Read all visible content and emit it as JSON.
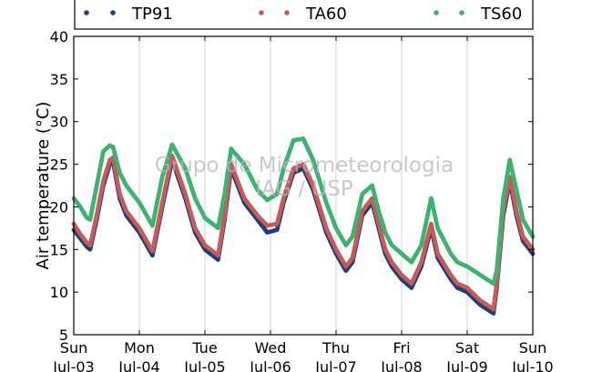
{
  "chart_data": {
    "type": "scatter",
    "ylabel": "Air temperature (°C)",
    "xlabel": "",
    "ylim": [
      5,
      40
    ],
    "xlim": [
      0,
      7
    ],
    "yticks": [
      5,
      10,
      15,
      20,
      25,
      30,
      35,
      40
    ],
    "x_unit": "days since Sun Jul-03 00:00",
    "xticks": [
      {
        "day": "Sun",
        "date": "Jul-03"
      },
      {
        "day": "Mon",
        "date": "Jul-04"
      },
      {
        "day": "Tue",
        "date": "Jul-05"
      },
      {
        "day": "Wed",
        "date": "Jul-06"
      },
      {
        "day": "Thu",
        "date": "Jul-07"
      },
      {
        "day": "Fri",
        "date": "Jul-08"
      },
      {
        "day": "Sat",
        "date": "Jul-09"
      },
      {
        "day": "Sun",
        "date": "Jul-10"
      }
    ],
    "grid": "vertical",
    "legend_position": "top",
    "watermark": [
      "Grupo de Micrometeorologia",
      "IAG / USP"
    ],
    "series": [
      {
        "name": "TP91",
        "color": "#1f3f7a",
        "x": [
          0.0,
          0.1,
          0.2,
          0.25,
          0.35,
          0.45,
          0.55,
          0.6,
          0.7,
          0.8,
          1.0,
          1.2,
          1.35,
          1.5,
          1.7,
          1.85,
          2.0,
          2.2,
          2.3,
          2.4,
          2.6,
          2.8,
          2.95,
          3.1,
          3.2,
          3.35,
          3.5,
          3.65,
          3.85,
          4.0,
          4.15,
          4.25,
          4.4,
          4.55,
          4.65,
          4.75,
          4.85,
          5.0,
          5.15,
          5.3,
          5.45,
          5.55,
          5.75,
          5.85,
          6.0,
          6.2,
          6.4,
          6.45,
          6.55,
          6.65,
          6.75,
          6.85,
          7.0
        ],
        "y": [
          17.3,
          16.3,
          15.3,
          15.0,
          18.5,
          22.5,
          25.0,
          25.3,
          21.0,
          19.0,
          17.0,
          14.3,
          20.0,
          25.5,
          21.0,
          17.0,
          15.0,
          13.8,
          18.5,
          24.5,
          20.5,
          18.5,
          17.0,
          17.3,
          20.5,
          24.0,
          24.5,
          22.0,
          17.0,
          14.5,
          12.5,
          13.5,
          19.0,
          20.5,
          17.5,
          14.5,
          13.0,
          11.5,
          10.5,
          13.0,
          17.5,
          14.0,
          11.5,
          10.5,
          10.0,
          8.5,
          7.5,
          10.5,
          19.0,
          23.0,
          19.0,
          16.0,
          14.5
        ]
      },
      {
        "name": "TA60",
        "color": "#c85a5a",
        "x": [
          0.0,
          0.1,
          0.2,
          0.25,
          0.35,
          0.45,
          0.55,
          0.6,
          0.7,
          0.8,
          1.0,
          1.2,
          1.35,
          1.5,
          1.7,
          1.85,
          2.0,
          2.2,
          2.3,
          2.4,
          2.6,
          2.8,
          2.95,
          3.1,
          3.2,
          3.35,
          3.5,
          3.65,
          3.85,
          4.0,
          4.15,
          4.25,
          4.4,
          4.55,
          4.65,
          4.75,
          4.85,
          5.0,
          5.15,
          5.3,
          5.45,
          5.55,
          5.75,
          5.85,
          6.0,
          6.2,
          6.4,
          6.45,
          6.55,
          6.65,
          6.75,
          6.85,
          7.0
        ],
        "y": [
          18.0,
          16.8,
          15.8,
          15.5,
          19.0,
          23.0,
          25.5,
          25.8,
          21.5,
          19.5,
          17.5,
          14.8,
          20.5,
          26.0,
          21.5,
          17.5,
          15.5,
          14.3,
          19.0,
          25.0,
          21.0,
          19.0,
          17.8,
          18.0,
          21.0,
          24.5,
          25.0,
          22.5,
          17.5,
          15.0,
          13.0,
          14.0,
          19.5,
          21.0,
          18.0,
          15.0,
          13.5,
          12.0,
          11.0,
          13.5,
          18.0,
          14.5,
          12.0,
          11.0,
          10.5,
          9.0,
          8.0,
          11.0,
          19.5,
          23.5,
          19.5,
          16.5,
          15.0
        ]
      },
      {
        "name": "TS60",
        "color": "#3cb371",
        "x": [
          0.0,
          0.1,
          0.2,
          0.25,
          0.35,
          0.45,
          0.55,
          0.6,
          0.7,
          0.8,
          1.0,
          1.2,
          1.35,
          1.5,
          1.7,
          1.85,
          2.0,
          2.2,
          2.3,
          2.4,
          2.6,
          2.8,
          2.95,
          3.1,
          3.2,
          3.35,
          3.5,
          3.65,
          3.85,
          4.0,
          4.15,
          4.25,
          4.4,
          4.55,
          4.65,
          4.75,
          4.85,
          5.0,
          5.15,
          5.3,
          5.45,
          5.55,
          5.75,
          5.85,
          6.0,
          6.2,
          6.4,
          6.45,
          6.55,
          6.65,
          6.75,
          6.85,
          7.0
        ],
        "y": [
          21.0,
          20.0,
          18.7,
          18.5,
          22.5,
          26.5,
          27.2,
          27.0,
          24.0,
          22.5,
          20.5,
          17.8,
          23.5,
          27.3,
          24.5,
          21.0,
          18.7,
          17.5,
          21.5,
          26.8,
          25.0,
          22.0,
          20.8,
          21.5,
          24.5,
          27.8,
          28.0,
          25.5,
          20.5,
          17.5,
          15.5,
          16.5,
          21.5,
          22.5,
          19.5,
          17.0,
          15.5,
          14.5,
          13.5,
          15.5,
          21.0,
          17.5,
          14.5,
          13.5,
          13.0,
          12.0,
          11.0,
          12.5,
          21.0,
          25.5,
          22.0,
          18.5,
          16.5
        ]
      }
    ]
  }
}
